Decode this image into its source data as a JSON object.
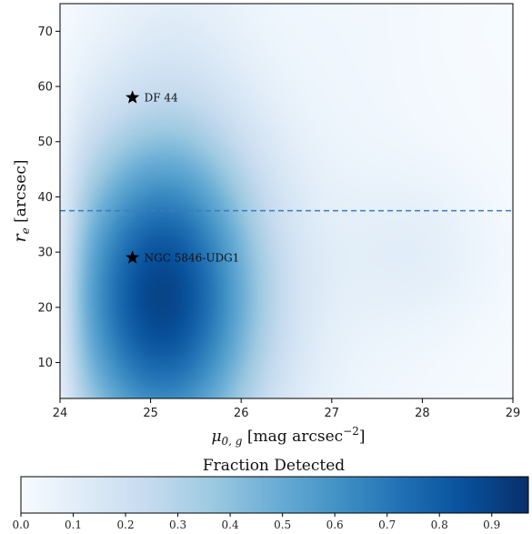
{
  "chart_data": {
    "type": "heatmap",
    "title": "",
    "xlabel_symbol": "μ",
    "xlabel_sub": "0, g",
    "xlabel_unit": " [mag arcsec",
    "xlabel_exp": "−2",
    "xlabel_close": "]",
    "ylabel_symbol": "r",
    "ylabel_sub": "e",
    "ylabel_unit": " [arcsec]",
    "xlim": [
      24,
      29
    ],
    "ylim": [
      3.5,
      75
    ],
    "xticks": [
      "24",
      "25",
      "26",
      "27",
      "28",
      "29"
    ],
    "yticks": [
      "10",
      "20",
      "30",
      "40",
      "50",
      "60",
      "70"
    ],
    "hline_y": 37.5,
    "colorbar": {
      "label": "Fraction Detected",
      "range": [
        0.0,
        0.97
      ],
      "ticks": [
        "0.0",
        "0.1",
        "0.2",
        "0.3",
        "0.4",
        "0.5",
        "0.6",
        "0.7",
        "0.8",
        "0.9"
      ],
      "colormap": "Blues",
      "stops": [
        "#f7fbff",
        "#deebf7",
        "#c6dbef",
        "#9ecae1",
        "#6baed6",
        "#4292c6",
        "#2171b5",
        "#08519c",
        "#08306b"
      ]
    },
    "points": [
      {
        "name": "DF 44",
        "x": 24.8,
        "y": 58
      },
      {
        "name": "NGC 5846-UDG1",
        "x": 24.8,
        "y": 29
      }
    ]
  },
  "colors": {
    "dashed_line": "#3a7bbf",
    "marker": "#000000"
  }
}
